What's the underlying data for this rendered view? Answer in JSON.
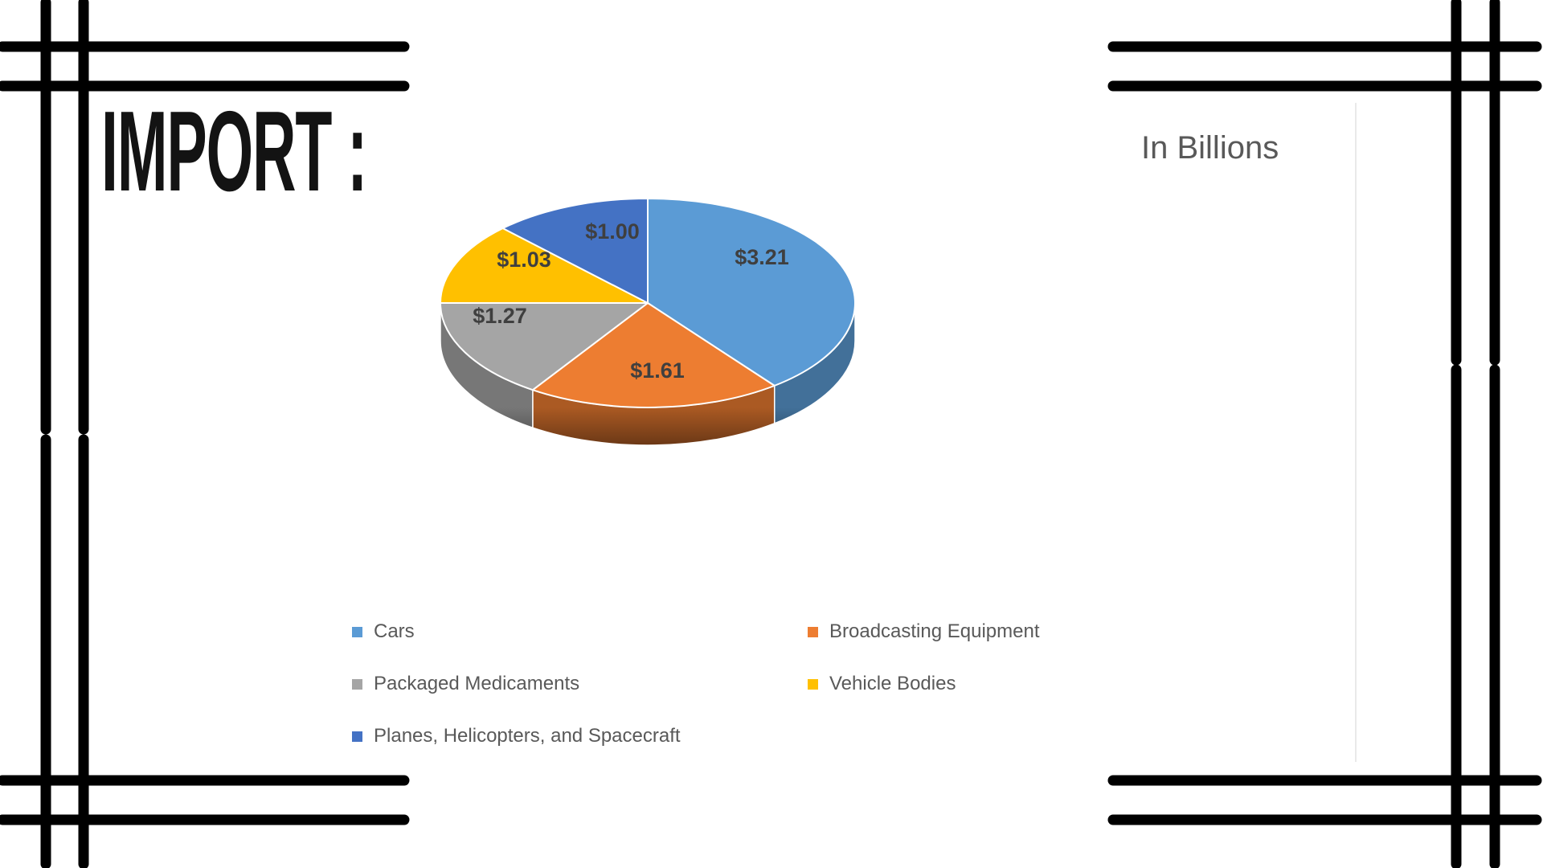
{
  "title": "IMPORT :",
  "chart_data": {
    "type": "pie",
    "style": "3d",
    "title": "In Billions",
    "unit": "USD billions",
    "categories": [
      "Cars",
      "Broadcasting Equipment",
      "Packaged Medicaments",
      "Vehicle Bodies",
      "Planes, Helicopters, and Spacecraft"
    ],
    "values": [
      3.21,
      1.61,
      1.27,
      1.03,
      1.0
    ],
    "labels": [
      "$3.21",
      "$1.61",
      "$1.27",
      "$1.03",
      "$1.00"
    ],
    "colors": [
      "#5B9BD5",
      "#ED7D31",
      "#A5A5A5",
      "#FFC000",
      "#4472C4"
    ],
    "legend_position": "bottom",
    "label_color": "#3f3f3f",
    "text_color": "#595959",
    "frame_color": "#000000"
  }
}
